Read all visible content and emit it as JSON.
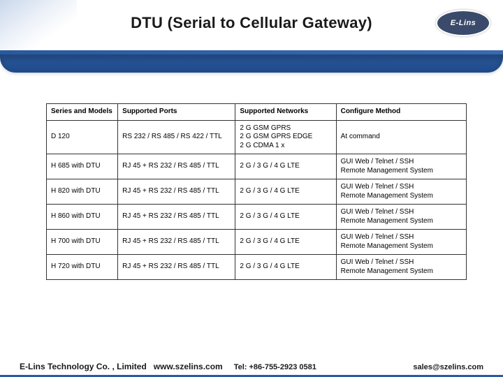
{
  "header": {
    "title": "DTU (Serial to Cellular Gateway)",
    "logo_text": "E-Lins",
    "accent_color": "#2a5a9e"
  },
  "table": {
    "columns": [
      "Series and Models",
      "Supported Ports",
      "Supported Networks",
      "Configure Method"
    ],
    "rows": [
      [
        "D 120",
        "RS 232 / RS 485 / RS 422 / TTL",
        "2 G GSM GPRS\n2 G GSM GPRS EDGE\n2 G CDMA 1 x",
        "At command"
      ],
      [
        "H 685 with DTU",
        "RJ 45 + RS 232 / RS 485 / TTL",
        "2 G / 3 G / 4 G LTE",
        "GUI Web / Telnet / SSH\nRemote Management System"
      ],
      [
        "H 820 with DTU",
        "RJ 45 + RS 232 / RS 485 / TTL",
        "2 G / 3 G / 4 G LTE",
        "GUI Web / Telnet / SSH\nRemote Management System"
      ],
      [
        "H 860 with DTU",
        "RJ 45 + RS 232 / RS 485 / TTL",
        "2 G / 3 G / 4 G LTE",
        "GUI Web / Telnet / SSH\nRemote Management System"
      ],
      [
        "H 700 with DTU",
        "RJ 45 + RS 232 / RS 485 / TTL",
        "2 G / 3 G / 4 G LTE",
        "GUI Web / Telnet / SSH\nRemote Management System"
      ],
      [
        "H 720 with DTU",
        "RJ 45 + RS 232 / RS 485 / TTL",
        "2 G / 3 G / 4 G LTE",
        "GUI Web / Telnet / SSH\nRemote Management System"
      ]
    ],
    "border_color": "#333333",
    "header_fontsize": 10,
    "cell_fontsize": 10,
    "column_widths_pct": [
      17,
      28,
      24,
      31
    ]
  },
  "footer": {
    "company": "E-Lins Technology Co. , Limited",
    "site": "www.szelins.com",
    "tel_label": "Tel: +86-755-2923 0581",
    "email": "sales@szelins.com"
  },
  "colors": {
    "brand_blue": "#2a5a9e",
    "brand_blue_dark": "#1f4a8a",
    "logo_bg": "#3a4a6a",
    "text": "#1a1a1a",
    "background": "#ffffff"
  }
}
